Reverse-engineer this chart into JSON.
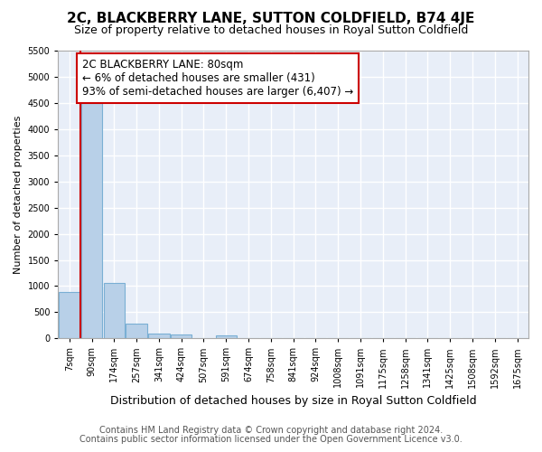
{
  "title": "2C, BLACKBERRY LANE, SUTTON COLDFIELD, B74 4JE",
  "subtitle": "Size of property relative to detached houses in Royal Sutton Coldfield",
  "xlabel": "Distribution of detached houses by size in Royal Sutton Coldfield",
  "ylabel": "Number of detached properties",
  "footnote1": "Contains HM Land Registry data © Crown copyright and database right 2024.",
  "footnote2": "Contains public sector information licensed under the Open Government Licence v3.0.",
  "categories": [
    "7sqm",
    "90sqm",
    "174sqm",
    "257sqm",
    "341sqm",
    "424sqm",
    "507sqm",
    "591sqm",
    "674sqm",
    "758sqm",
    "841sqm",
    "924sqm",
    "1008sqm",
    "1091sqm",
    "1175sqm",
    "1258sqm",
    "1341sqm",
    "1425sqm",
    "1508sqm",
    "1592sqm",
    "1675sqm"
  ],
  "bar_values": [
    880,
    4560,
    1060,
    280,
    85,
    80,
    0,
    60,
    0,
    0,
    0,
    0,
    0,
    0,
    0,
    0,
    0,
    0,
    0,
    0,
    0
  ],
  "bar_color": "#b8d0e8",
  "bar_edge_color": "#7aafd4",
  "vline_color": "#cc0000",
  "vline_x_bar_index": 0.5,
  "annotation_text": "2C BLACKBERRY LANE: 80sqm\n← 6% of detached houses are smaller (431)\n93% of semi-detached houses are larger (6,407) →",
  "annotation_box_facecolor": "#ffffff",
  "annotation_box_edgecolor": "#cc0000",
  "ylim": [
    0,
    5500
  ],
  "yticks": [
    0,
    500,
    1000,
    1500,
    2000,
    2500,
    3000,
    3500,
    4000,
    4500,
    5000,
    5500
  ],
  "background_color": "#ffffff",
  "plot_bg_color": "#e8eef8",
  "grid_color": "#ffffff",
  "title_fontsize": 11,
  "subtitle_fontsize": 9,
  "ylabel_fontsize": 8,
  "xlabel_fontsize": 9,
  "tick_fontsize": 7,
  "annotation_fontsize": 8.5,
  "footnote_fontsize": 7
}
